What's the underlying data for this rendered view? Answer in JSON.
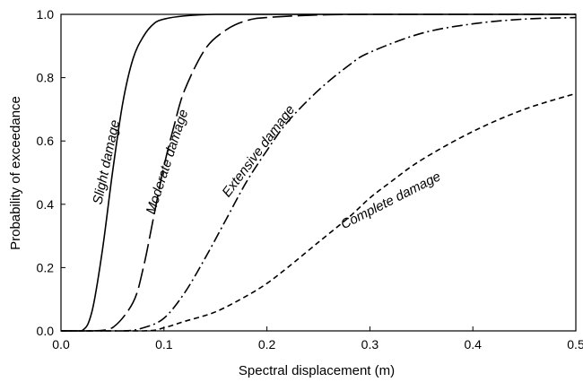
{
  "chart_data": {
    "type": "line",
    "title": "",
    "xlabel": "Spectral displacement (m)",
    "ylabel": "Probability of exceedance",
    "xlim": [
      0.0,
      0.5
    ],
    "ylim": [
      0.0,
      1.0
    ],
    "x_ticks": [
      "0.0",
      "0.1",
      "0.2",
      "0.3",
      "0.4",
      "0.5"
    ],
    "y_ticks": [
      "0.0",
      "0.2",
      "0.4",
      "0.6",
      "0.8",
      "1.0"
    ],
    "grid": false,
    "legend": "none",
    "series": [
      {
        "name": "Slight damage",
        "line_style": "solid",
        "color": "#000000",
        "points": [
          [
            0.0,
            0.0
          ],
          [
            0.02,
            0.0
          ],
          [
            0.03,
            0.06
          ],
          [
            0.04,
            0.25
          ],
          [
            0.05,
            0.5
          ],
          [
            0.06,
            0.72
          ],
          [
            0.07,
            0.86
          ],
          [
            0.08,
            0.93
          ],
          [
            0.09,
            0.97
          ],
          [
            0.1,
            0.985
          ],
          [
            0.12,
            0.995
          ],
          [
            0.15,
            1.0
          ],
          [
            0.2,
            1.0
          ],
          [
            0.3,
            1.0
          ],
          [
            0.4,
            1.0
          ],
          [
            0.5,
            1.0
          ]
        ]
      },
      {
        "name": "Moderate damage",
        "line_style": "long-dash",
        "color": "#000000",
        "points": [
          [
            0.0,
            0.0
          ],
          [
            0.03,
            0.0
          ],
          [
            0.05,
            0.01
          ],
          [
            0.07,
            0.09
          ],
          [
            0.08,
            0.2
          ],
          [
            0.09,
            0.36
          ],
          [
            0.1,
            0.52
          ],
          [
            0.11,
            0.65
          ],
          [
            0.12,
            0.76
          ],
          [
            0.14,
            0.89
          ],
          [
            0.16,
            0.95
          ],
          [
            0.18,
            0.98
          ],
          [
            0.2,
            0.99
          ],
          [
            0.25,
            0.998
          ],
          [
            0.3,
            1.0
          ],
          [
            0.4,
            1.0
          ],
          [
            0.5,
            1.0
          ]
        ]
      },
      {
        "name": "Extensive damage",
        "line_style": "dash-dot",
        "color": "#000000",
        "points": [
          [
            0.0,
            0.0
          ],
          [
            0.06,
            0.0
          ],
          [
            0.08,
            0.01
          ],
          [
            0.1,
            0.04
          ],
          [
            0.12,
            0.12
          ],
          [
            0.14,
            0.23
          ],
          [
            0.16,
            0.35
          ],
          [
            0.18,
            0.47
          ],
          [
            0.2,
            0.57
          ],
          [
            0.22,
            0.66
          ],
          [
            0.25,
            0.76
          ],
          [
            0.28,
            0.84
          ],
          [
            0.3,
            0.88
          ],
          [
            0.35,
            0.94
          ],
          [
            0.4,
            0.97
          ],
          [
            0.45,
            0.985
          ],
          [
            0.5,
            0.99
          ]
        ]
      },
      {
        "name": "Complete damage",
        "line_style": "short-dash",
        "color": "#000000",
        "points": [
          [
            0.0,
            0.0
          ],
          [
            0.08,
            0.0
          ],
          [
            0.1,
            0.01
          ],
          [
            0.12,
            0.03
          ],
          [
            0.15,
            0.06
          ],
          [
            0.18,
            0.11
          ],
          [
            0.2,
            0.15
          ],
          [
            0.22,
            0.2
          ],
          [
            0.25,
            0.28
          ],
          [
            0.28,
            0.36
          ],
          [
            0.3,
            0.42
          ],
          [
            0.32,
            0.47
          ],
          [
            0.35,
            0.54
          ],
          [
            0.4,
            0.63
          ],
          [
            0.45,
            0.7
          ],
          [
            0.5,
            0.75
          ]
        ]
      }
    ],
    "annotations": [
      {
        "text": "Slight damage",
        "x": 0.048,
        "y": 0.53,
        "angle": -78
      },
      {
        "text": "Moderate damage",
        "x": 0.107,
        "y": 0.53,
        "angle": -72
      },
      {
        "text": "Extensive damage",
        "x": 0.195,
        "y": 0.56,
        "angle": -53
      },
      {
        "text": "Complete damage",
        "x": 0.322,
        "y": 0.4,
        "angle": -27
      }
    ]
  }
}
